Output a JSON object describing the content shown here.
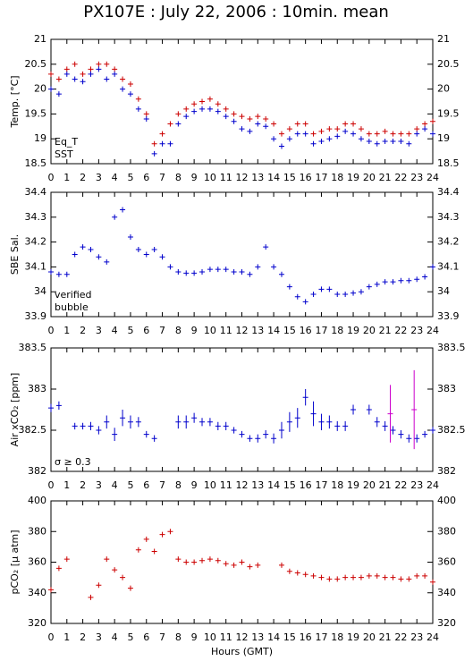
{
  "title": "PX107E : July 22, 2006 : 10min. mean",
  "chart_data": [
    {
      "type": "scatter",
      "ylabel": "Temp. [°C]",
      "xlim": [
        0,
        24
      ],
      "xticks": [
        0,
        1,
        2,
        3,
        4,
        5,
        6,
        7,
        8,
        9,
        10,
        11,
        12,
        13,
        14,
        15,
        16,
        17,
        18,
        19,
        20,
        21,
        22,
        23,
        24
      ],
      "ylim": [
        18.5,
        21
      ],
      "yticks": [
        18.5,
        19,
        19.5,
        20,
        20.5,
        21
      ],
      "legend": "lower left",
      "x": [
        0,
        0.5,
        1,
        1.5,
        2,
        2.5,
        3,
        3.5,
        4,
        4.5,
        5,
        5.5,
        6,
        6.5,
        7,
        7.5,
        8,
        8.5,
        9,
        9.5,
        10,
        10.5,
        11,
        11.5,
        12,
        12.5,
        13,
        13.5,
        14,
        14.5,
        15,
        15.5,
        16,
        16.5,
        17,
        17.5,
        18,
        18.5,
        19,
        19.5,
        20,
        20.5,
        21,
        21.5,
        22,
        22.5,
        23,
        23.5,
        24
      ],
      "series": [
        {
          "name": "Eq_T",
          "color": "#cc0000",
          "values": [
            20.3,
            20.2,
            20.4,
            20.5,
            20.3,
            20.4,
            20.5,
            20.5,
            20.4,
            20.2,
            20.1,
            19.8,
            19.5,
            18.9,
            19.1,
            19.3,
            19.5,
            19.6,
            19.7,
            19.75,
            19.8,
            19.7,
            19.6,
            19.5,
            19.45,
            19.4,
            19.45,
            19.4,
            19.3,
            19.1,
            19.2,
            19.3,
            19.3,
            19.1,
            19.15,
            19.2,
            19.2,
            19.3,
            19.3,
            19.2,
            19.1,
            19.1,
            19.15,
            19.1,
            19.1,
            19.1,
            19.2,
            19.3,
            19.35
          ]
        },
        {
          "name": "SST",
          "color": "#0000cc",
          "values": [
            20.0,
            19.9,
            20.3,
            20.2,
            20.15,
            20.3,
            20.4,
            20.2,
            20.3,
            20.0,
            19.9,
            19.6,
            19.4,
            18.7,
            18.9,
            18.9,
            19.3,
            19.45,
            19.55,
            19.6,
            19.6,
            19.55,
            19.45,
            19.35,
            19.2,
            19.15,
            19.3,
            19.25,
            19.0,
            18.85,
            19.0,
            19.1,
            19.1,
            18.9,
            18.95,
            19.0,
            19.05,
            19.15,
            19.1,
            19.0,
            18.95,
            18.9,
            18.95,
            18.95,
            18.95,
            18.9,
            19.1,
            19.2,
            19.1
          ]
        }
      ]
    },
    {
      "type": "scatter",
      "ylabel": "SBE Sal.",
      "xlim": [
        0,
        24
      ],
      "xticks": [
        0,
        1,
        2,
        3,
        4,
        5,
        6,
        7,
        8,
        9,
        10,
        11,
        12,
        13,
        14,
        15,
        16,
        17,
        18,
        19,
        20,
        21,
        22,
        23,
        24
      ],
      "ylim": [
        33.9,
        34.4
      ],
      "yticks": [
        33.9,
        34,
        34.1,
        34.2,
        34.3,
        34.4
      ],
      "legend": "lower left",
      "x": [
        0,
        0.5,
        1,
        1.5,
        2,
        2.5,
        3,
        3.5,
        4,
        4.5,
        5,
        5.5,
        6,
        6.5,
        7,
        7.5,
        8,
        8.5,
        9,
        9.5,
        10,
        10.5,
        11,
        11.5,
        12,
        12.5,
        13,
        13.5,
        14,
        14.5,
        15,
        15.5,
        16,
        16.5,
        17,
        17.5,
        18,
        18.5,
        19,
        19.5,
        20,
        20.5,
        21,
        21.5,
        22,
        22.5,
        23,
        23.5,
        24
      ],
      "series": [
        {
          "name": "verified",
          "color": "#0000cc",
          "values": [
            34.08,
            34.07,
            34.07,
            34.15,
            34.18,
            34.17,
            34.14,
            34.12,
            34.3,
            34.33,
            34.22,
            34.17,
            34.15,
            34.17,
            34.14,
            34.1,
            34.08,
            34.075,
            34.075,
            34.08,
            34.09,
            34.09,
            34.09,
            34.08,
            34.08,
            34.07,
            34.1,
            34.18,
            34.1,
            34.07,
            34.02,
            33.98,
            33.96,
            33.99,
            34.01,
            34.01,
            33.99,
            33.99,
            33.995,
            34.0,
            34.02,
            34.03,
            34.04,
            34.04,
            34.045,
            34.045,
            34.05,
            34.06,
            34.1
          ]
        },
        {
          "name": "bubble",
          "color": "#cc00cc",
          "x": [],
          "values": []
        }
      ]
    },
    {
      "type": "errorbar",
      "ylabel": "Air xCO₂ [ppm]",
      "xlim": [
        0,
        24
      ],
      "xticks": [
        0,
        1,
        2,
        3,
        4,
        5,
        6,
        7,
        8,
        9,
        10,
        11,
        12,
        13,
        14,
        15,
        16,
        17,
        18,
        19,
        20,
        21,
        22,
        23,
        24
      ],
      "ylim": [
        382,
        383.5
      ],
      "yticks": [
        382,
        382.5,
        383,
        383.5
      ],
      "legend": "lower left",
      "x": [
        0,
        0.5,
        1,
        1.5,
        2,
        2.5,
        3,
        3.5,
        4,
        4.5,
        5,
        5.5,
        6,
        6.5,
        7,
        7.5,
        8,
        8.5,
        9,
        9.5,
        10,
        10.5,
        11,
        11.5,
        12,
        12.5,
        13,
        13.5,
        14,
        14.5,
        15,
        15.5,
        16,
        16.5,
        17,
        17.5,
        18,
        18.5,
        19,
        19.5,
        20,
        20.5,
        21,
        21.5,
        22,
        22.5,
        23,
        23.5,
        24
      ],
      "series": [
        {
          "color": "#0000cc",
          "values": [
            382.77,
            382.8,
            null,
            382.55,
            382.55,
            382.55,
            382.5,
            382.6,
            382.45,
            382.65,
            382.6,
            382.6,
            382.45,
            382.4,
            null,
            null,
            382.6,
            382.6,
            382.65,
            382.6,
            382.6,
            382.55,
            382.55,
            382.5,
            382.45,
            382.4,
            382.4,
            382.45,
            382.4,
            382.5,
            382.6,
            382.65,
            382.9,
            382.7,
            382.6,
            382.6,
            382.55,
            382.55,
            382.75,
            null,
            382.75,
            382.6,
            382.55,
            382.5,
            382.45,
            382.4,
            382.4,
            382.45,
            382.5
          ],
          "errors": [
            0.05,
            0.05,
            null,
            0.04,
            0.04,
            0.05,
            0.05,
            0.08,
            0.08,
            0.1,
            0.08,
            0.06,
            0.04,
            0.04,
            null,
            null,
            0.08,
            0.08,
            0.06,
            0.05,
            0.05,
            0.05,
            0.05,
            0.04,
            0.04,
            0.04,
            0.05,
            0.05,
            0.06,
            0.1,
            0.12,
            0.12,
            0.1,
            0.15,
            0.1,
            0.08,
            0.06,
            0.06,
            0.06,
            null,
            0.06,
            0.06,
            0.06,
            0.05,
            0.05,
            0.05,
            0.05,
            0.04,
            0.04
          ]
        },
        {
          "name": "σ ≥ 0.3",
          "color": "#cc00cc",
          "x": [
            21.33,
            22.83
          ],
          "values": [
            382.7,
            382.75
          ],
          "errors": [
            0.35,
            0.48
          ]
        }
      ]
    },
    {
      "type": "scatter",
      "ylabel": "pCO₂ [μ atm]",
      "xlabel": "Hours (GMT)",
      "xlim": [
        0,
        24
      ],
      "xticks": [
        0,
        1,
        2,
        3,
        4,
        5,
        6,
        7,
        8,
        9,
        10,
        11,
        12,
        13,
        14,
        15,
        16,
        17,
        18,
        19,
        20,
        21,
        22,
        23,
        24
      ],
      "ylim": [
        320,
        400
      ],
      "yticks": [
        320,
        340,
        360,
        380,
        400
      ],
      "x": [
        0,
        0.5,
        1,
        1.5,
        2,
        2.5,
        3,
        3.5,
        4,
        4.5,
        5,
        5.5,
        6,
        6.5,
        7,
        7.5,
        8,
        8.5,
        9,
        9.5,
        10,
        10.5,
        11,
        11.5,
        12,
        12.5,
        13,
        13.5,
        14,
        14.5,
        15,
        15.5,
        16,
        16.5,
        17,
        17.5,
        18,
        18.5,
        19,
        19.5,
        20,
        20.5,
        21,
        21.5,
        22,
        22.5,
        23,
        23.5,
        24
      ],
      "series": [
        {
          "color": "#cc0000",
          "values": [
            342,
            356,
            362,
            null,
            null,
            337,
            345,
            362,
            355,
            350,
            343,
            368,
            375,
            367,
            378,
            380,
            362,
            360,
            360,
            361,
            362,
            361,
            359,
            358,
            360,
            357,
            358,
            null,
            null,
            358,
            354,
            353,
            352,
            351,
            350,
            349,
            349,
            350,
            350,
            350,
            351,
            351,
            350,
            350,
            349,
            349,
            351,
            351,
            347
          ]
        }
      ]
    }
  ]
}
